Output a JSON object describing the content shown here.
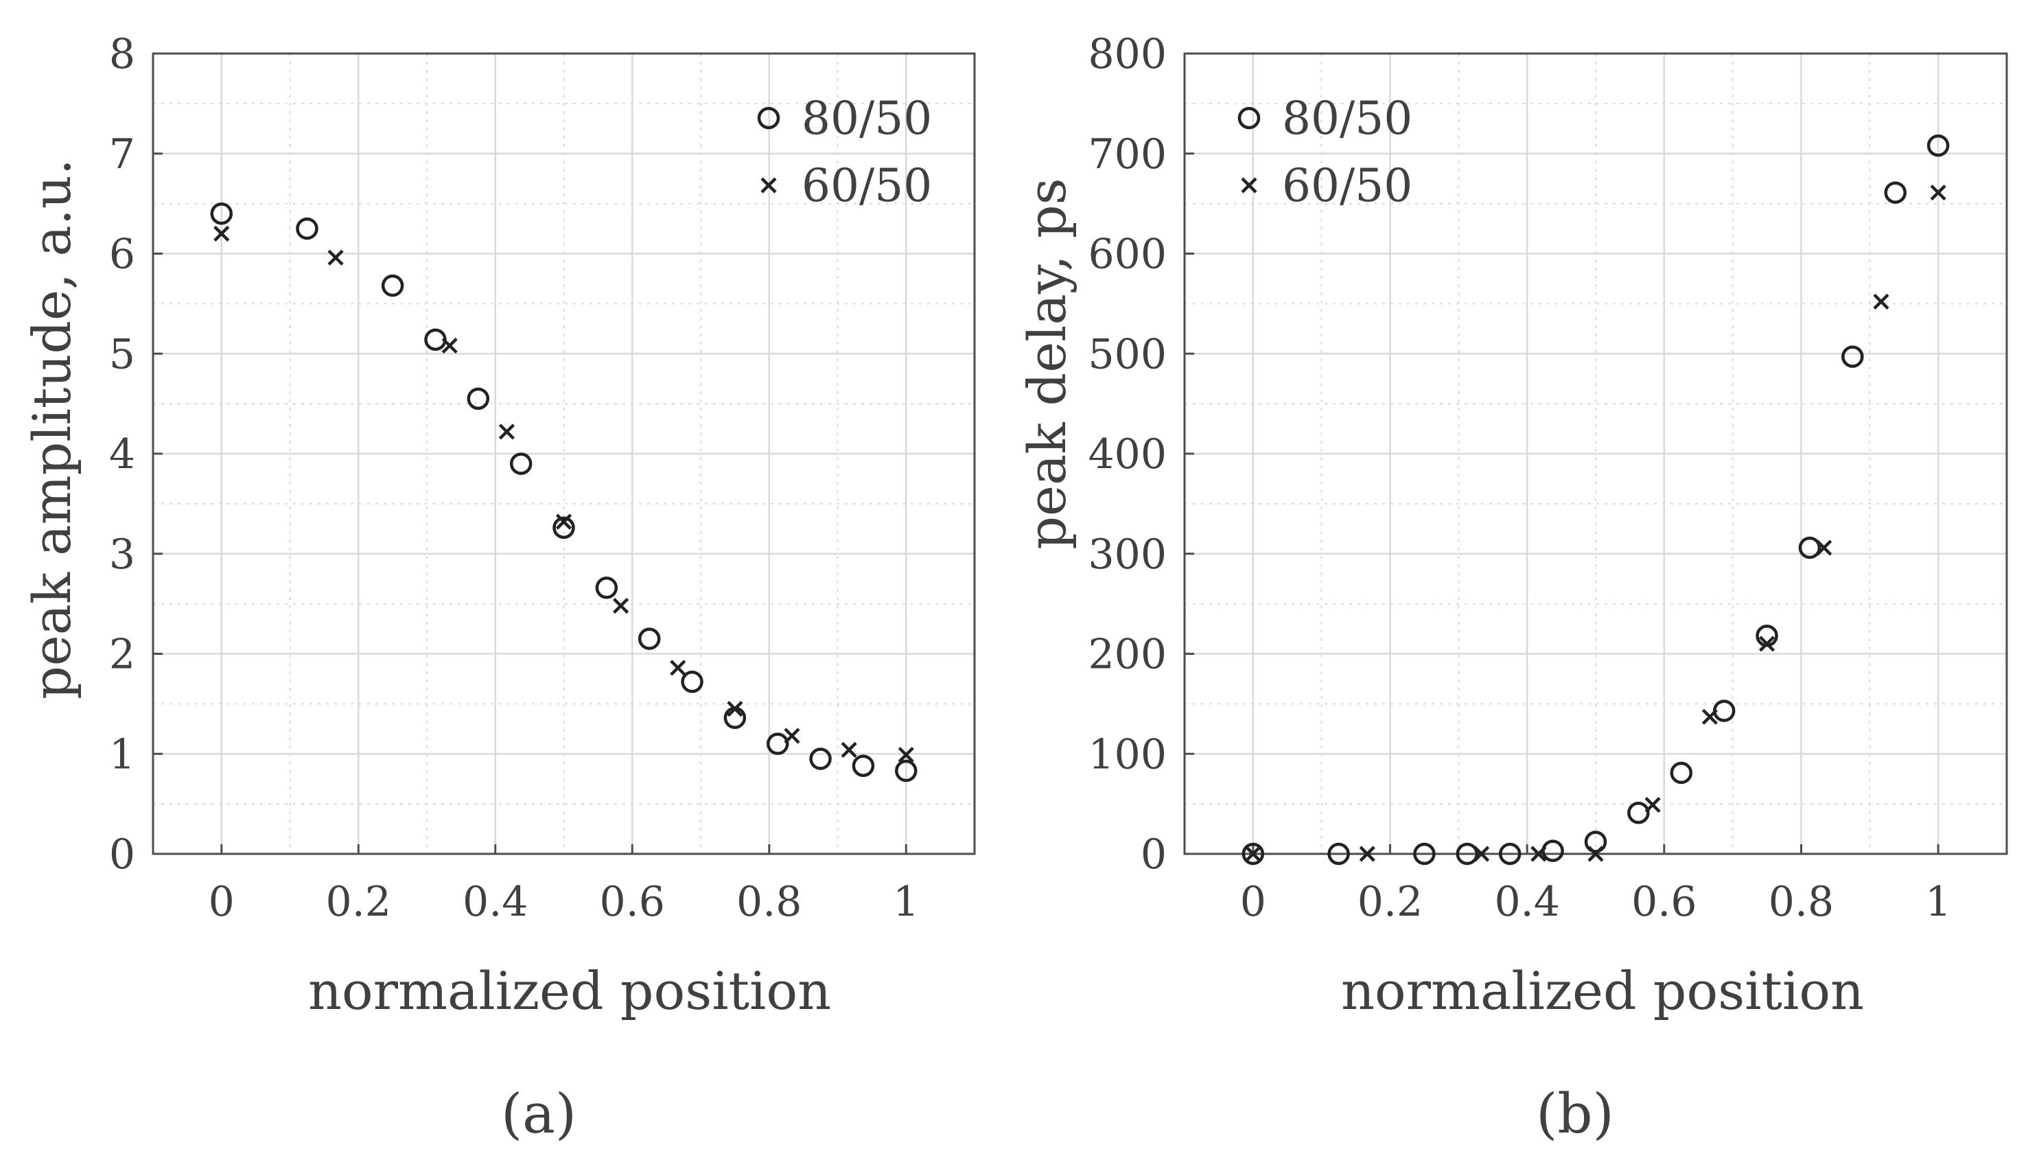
{
  "colors": {
    "axis": "#4d4d4d",
    "grid": "#d9d9d9",
    "marker": "#222222",
    "text": "#404040"
  },
  "chart_data": [
    {
      "type": "scatter",
      "panel_label": "(a)",
      "xlabel": "normalized position",
      "ylabel": "peak amplitude, a.u.",
      "xlim": [
        -0.1,
        1.1
      ],
      "ylim": [
        0,
        8
      ],
      "xticks": [
        0,
        0.2,
        0.4,
        0.6,
        0.8,
        1
      ],
      "xtick_labels": [
        "0",
        "0.2",
        "0.4",
        "0.6",
        "0.8",
        "1"
      ],
      "yticks": [
        0,
        1,
        2,
        3,
        4,
        5,
        6,
        7,
        8
      ],
      "ytick_labels": [
        "0",
        "1",
        "2",
        "3",
        "4",
        "5",
        "6",
        "7",
        "8"
      ],
      "grid": true,
      "legend_position": "top-right",
      "series": [
        {
          "name": "80/50",
          "marker": "circle",
          "x": [
            0,
            0.125,
            0.25,
            0.3125,
            0.375,
            0.4375,
            0.5,
            0.5625,
            0.625,
            0.6875,
            0.75,
            0.8125,
            0.875,
            0.9375,
            1
          ],
          "y": [
            6.4,
            6.25,
            5.68,
            5.14,
            4.55,
            3.9,
            3.26,
            2.66,
            2.15,
            1.72,
            1.36,
            1.1,
            0.95,
            0.88,
            0.83
          ]
        },
        {
          "name": "60/50",
          "marker": "cross",
          "x": [
            0,
            0.1667,
            0.3333,
            0.4167,
            0.5,
            0.5833,
            0.6667,
            0.75,
            0.8333,
            0.9167,
            1
          ],
          "y": [
            6.2,
            5.96,
            5.08,
            4.22,
            3.32,
            2.48,
            1.86,
            1.45,
            1.18,
            1.04,
            0.99
          ]
        }
      ]
    },
    {
      "type": "scatter",
      "panel_label": "(b)",
      "xlabel": "normalized position",
      "ylabel": "peak delay, ps",
      "xlim": [
        -0.1,
        1.1
      ],
      "ylim": [
        0,
        800
      ],
      "xticks": [
        0,
        0.2,
        0.4,
        0.6,
        0.8,
        1
      ],
      "xtick_labels": [
        "0",
        "0.2",
        "0.4",
        "0.6",
        "0.8",
        "1"
      ],
      "yticks": [
        0,
        100,
        200,
        300,
        400,
        500,
        600,
        700,
        800
      ],
      "ytick_labels": [
        "0",
        "100",
        "200",
        "300",
        "400",
        "500",
        "600",
        "700",
        "800"
      ],
      "grid": true,
      "legend_position": "top-left",
      "series": [
        {
          "name": "80/50",
          "marker": "circle",
          "x": [
            0,
            0.125,
            0.25,
            0.3125,
            0.375,
            0.4375,
            0.5,
            0.5625,
            0.625,
            0.6875,
            0.75,
            0.8125,
            0.875,
            0.9375,
            1
          ],
          "y": [
            0,
            0,
            0,
            0,
            0,
            3,
            12,
            41,
            81,
            143,
            218,
            306,
            497,
            661,
            708
          ]
        },
        {
          "name": "60/50",
          "marker": "cross",
          "x": [
            0,
            0.1667,
            0.3333,
            0.4167,
            0.5,
            0.5833,
            0.6667,
            0.75,
            0.8333,
            0.9167,
            1
          ],
          "y": [
            0,
            0,
            0,
            0,
            0,
            49,
            137,
            210,
            306,
            552,
            661
          ]
        }
      ]
    }
  ]
}
